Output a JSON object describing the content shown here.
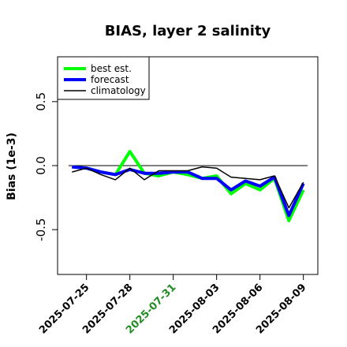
{
  "chart_data": {
    "type": "line",
    "title": "BIAS, layer 2 salinity",
    "xlabel": "",
    "ylabel": "Bias (1e-3)",
    "ylim": [
      -0.85,
      0.85
    ],
    "yticks": [
      -0.5,
      0.0,
      0.5
    ],
    "ytick_labels": [
      "-0.5",
      "0.0",
      "0.5"
    ],
    "x": [
      "2025-07-24",
      "2025-07-25",
      "2025-07-26",
      "2025-07-27",
      "2025-07-28",
      "2025-07-29",
      "2025-07-30",
      "2025-07-31",
      "2025-08-01",
      "2025-08-02",
      "2025-08-03",
      "2025-08-04",
      "2025-08-05",
      "2025-08-06",
      "2025-08-07",
      "2025-08-08",
      "2025-08-09"
    ],
    "xlim": [
      "2025-07-23",
      "2025-08-10"
    ],
    "xticks": [
      "2025-07-25",
      "2025-07-28",
      "2025-07-31",
      "2025-08-03",
      "2025-08-06",
      "2025-08-09"
    ],
    "xtick_colors": [
      "#000000",
      "#000000",
      "#228b22",
      "#000000",
      "#000000",
      "#000000"
    ],
    "reference_line": 0.0,
    "legend_position": "top-left",
    "series": [
      {
        "name": "best est.",
        "color": "#00ff00",
        "width": 4,
        "values": [
          -0.01,
          -0.02,
          -0.05,
          -0.07,
          0.11,
          -0.06,
          -0.08,
          -0.05,
          -0.07,
          -0.1,
          -0.08,
          -0.22,
          -0.14,
          -0.19,
          -0.1,
          -0.43,
          -0.19
        ]
      },
      {
        "name": "forecast",
        "color": "#0000ff",
        "width": 4,
        "values": [
          -0.01,
          -0.02,
          -0.05,
          -0.07,
          -0.03,
          -0.06,
          -0.06,
          -0.05,
          -0.05,
          -0.1,
          -0.1,
          -0.19,
          -0.12,
          -0.16,
          -0.09,
          -0.39,
          -0.14
        ]
      },
      {
        "name": "climatology",
        "color": "#000000",
        "width": 1.5,
        "values": [
          -0.05,
          -0.02,
          -0.07,
          -0.11,
          -0.02,
          -0.11,
          -0.04,
          -0.04,
          -0.04,
          -0.01,
          -0.02,
          -0.09,
          -0.1,
          -0.11,
          -0.08,
          -0.33,
          -0.13
        ]
      }
    ]
  }
}
